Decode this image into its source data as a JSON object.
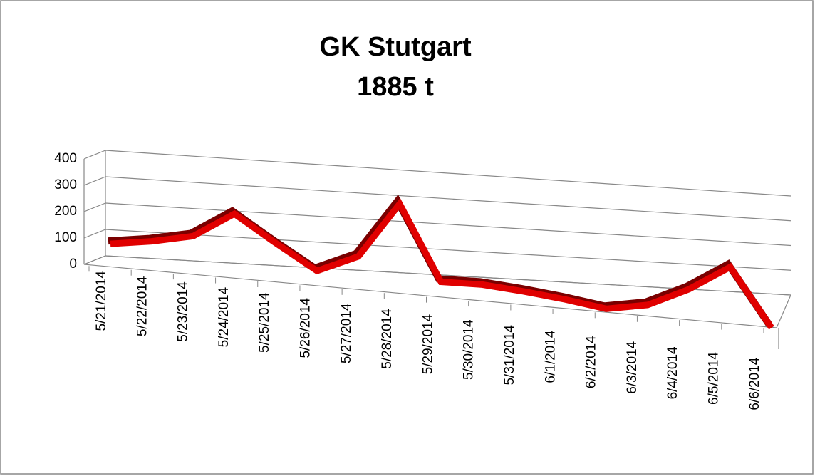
{
  "chart_data": {
    "type": "line3d",
    "title": "GK Stutgart",
    "subtitle": "1885 t",
    "categories": [
      "5/21/2014",
      "5/22/2014",
      "5/23/2014",
      "5/24/2014",
      "5/25/2014",
      "5/26/2014",
      "5/27/2014",
      "5/28/2014",
      "5/29/2014",
      "5/30/2014",
      "5/31/2014",
      "6/1/2014",
      "6/2/2014",
      "6/3/2014",
      "6/4/2014",
      "6/5/2014",
      "6/6/2014"
    ],
    "values": [
      70,
      95,
      130,
      230,
      135,
      45,
      115,
      330,
      50,
      55,
      45,
      30,
      10,
      40,
      115,
      215,
      0
    ],
    "color": "#e00000",
    "ylim": [
      0,
      400
    ],
    "yticks": [
      0,
      100,
      200,
      300,
      400
    ],
    "grid": true
  }
}
